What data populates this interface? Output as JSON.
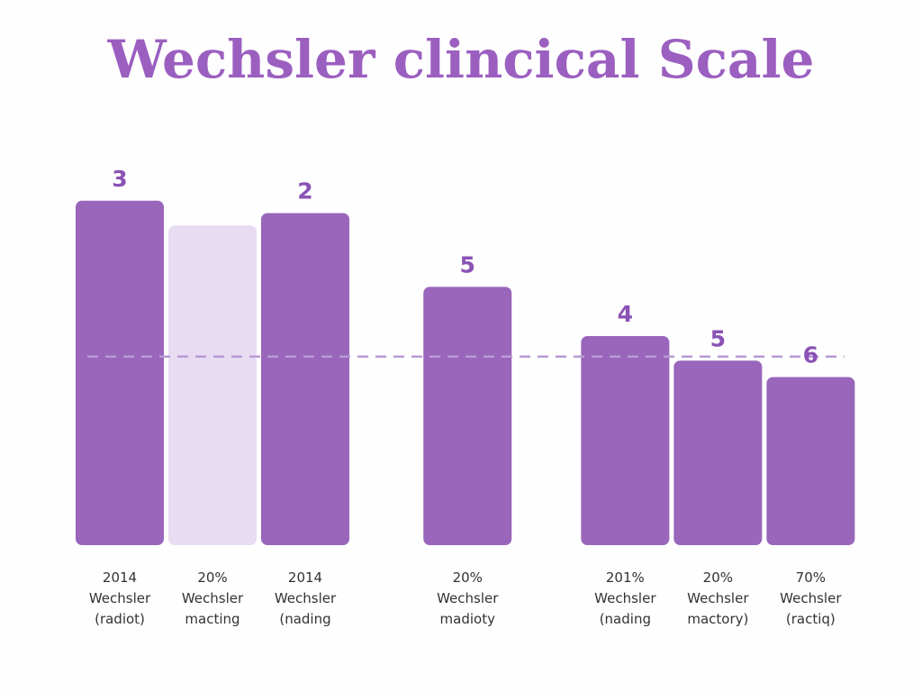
{
  "chart_data": {
    "type": "bar",
    "title": "Wechsler clincical Scale",
    "xlabel": "",
    "ylabel": "",
    "ylim": [
      0,
      10
    ],
    "grid": false,
    "legend": "none",
    "reference_line": {
      "value": 4.6,
      "style": "dashed"
    },
    "categories": [
      [
        "2014",
        "Wechsler",
        "(radiot)"
      ],
      [
        "20%",
        "Wechsler",
        "macting"
      ],
      [
        "2014",
        "Wechsler",
        "(nading"
      ],
      [
        "20%",
        "Wechsler",
        "madioty"
      ],
      [
        "201%",
        "Wechsler",
        "(nading"
      ],
      [
        "20%",
        "Wechsler",
        "mactory)"
      ],
      [
        "70%",
        "Wechsler",
        "(ractiq)"
      ]
    ],
    "slots": [
      0,
      1,
      2,
      3.75,
      5.45,
      6.45,
      7.45
    ],
    "values": [
      8.4,
      7.8,
      8.1,
      6.3,
      5.1,
      4.5,
      4.1
    ],
    "value_labels": [
      "3",
      "",
      "2",
      "5",
      "4",
      "5",
      "6"
    ],
    "highlight": [
      false,
      true,
      false,
      false,
      false,
      false,
      false
    ]
  },
  "colors": {
    "title": "#9b5fc0",
    "bar": "#9966bb",
    "bar_light": "#e8dcf3",
    "value_label": "#8a52b5",
    "reference_line": "#b99bd6"
  }
}
